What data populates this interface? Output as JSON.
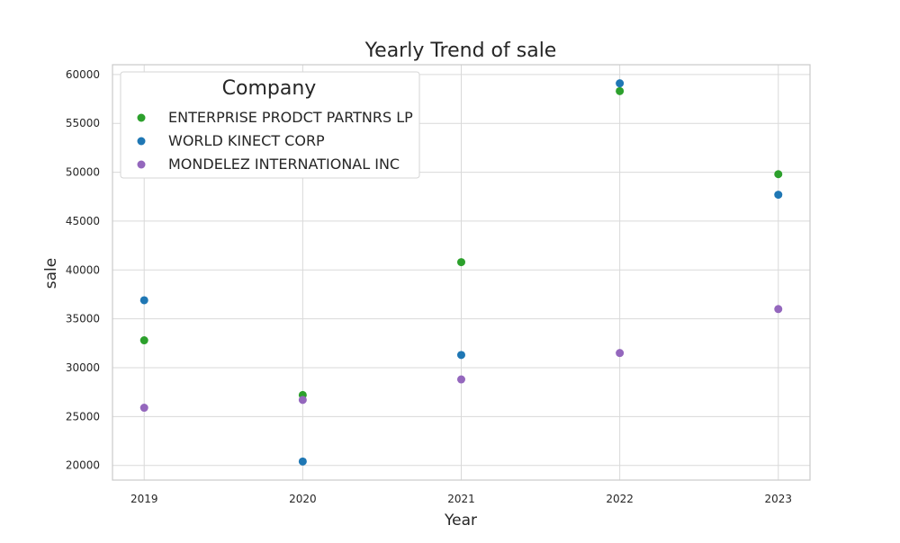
{
  "chart_data": {
    "type": "scatter",
    "title": "Yearly Trend of sale",
    "xlabel": "Year",
    "ylabel": "sale",
    "x": [
      2019,
      2020,
      2021,
      2022,
      2023
    ],
    "x_tick_labels": [
      "2019",
      "2020",
      "2021",
      "2022",
      "2023"
    ],
    "xlim": [
      2018.8,
      2023.2
    ],
    "ylim": [
      18500,
      61000
    ],
    "y_ticks": [
      20000,
      25000,
      30000,
      35000,
      40000,
      45000,
      50000,
      55000,
      60000
    ],
    "y_tick_labels": [
      "20000",
      "25000",
      "30000",
      "35000",
      "40000",
      "45000",
      "50000",
      "55000",
      "60000"
    ],
    "grid": true,
    "legend": {
      "title": "Company",
      "placement": "top-left"
    },
    "series": [
      {
        "name": "ENTERPRISE PRODCT PARTNRS LP",
        "color": "#2ca02c",
        "values": [
          32800,
          27200,
          40800,
          58300,
          49800
        ]
      },
      {
        "name": "WORLD KINECT CORP",
        "color": "#1f77b4",
        "values": [
          36900,
          20400,
          31300,
          59100,
          47700
        ]
      },
      {
        "name": "MONDELEZ INTERNATIONAL INC",
        "color": "#9467bd",
        "values": [
          25900,
          26700,
          28800,
          31500,
          36000
        ]
      }
    ]
  }
}
